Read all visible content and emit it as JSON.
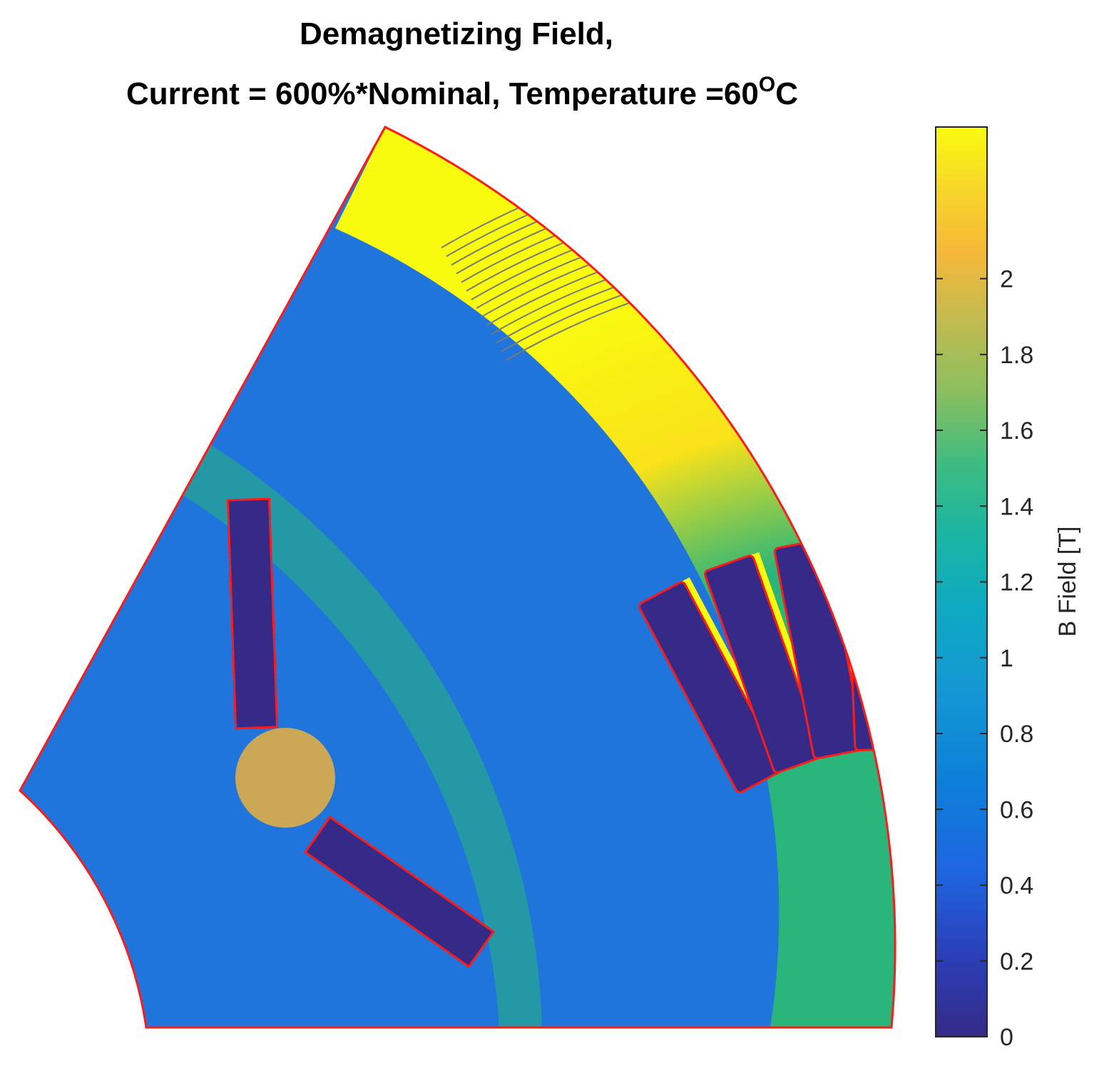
{
  "chart_data": {
    "type": "heatmap",
    "title_line1": "Demagnetizing Field,",
    "title_line2_prefix": "Current = 600%*Nominal, Temperature =60",
    "title_degree_sup": "O",
    "title_unit": "C",
    "colorbar": {
      "label": "B Field [T]",
      "range": [
        0,
        2.4
      ],
      "ticks": [
        0,
        0.2,
        0.4,
        0.6,
        0.8,
        1,
        1.2,
        1.4,
        1.6,
        1.8,
        2
      ],
      "tick_labels": [
        "0",
        "0.2",
        "0.4",
        "0.6",
        "0.8",
        "1",
        "1.2",
        "1.4",
        "1.6",
        "1.8",
        "2"
      ],
      "colormap": "parula"
    }
  },
  "colors": {
    "outline": "#ff1a1a",
    "flux_lines": "#7a7a7a",
    "low": "#352a87",
    "blue": "#1f65e0",
    "cyan": "#0fa3c9",
    "green": "#2ab57a",
    "orange": "#f7b534",
    "yellow": "#f9fb0e"
  }
}
